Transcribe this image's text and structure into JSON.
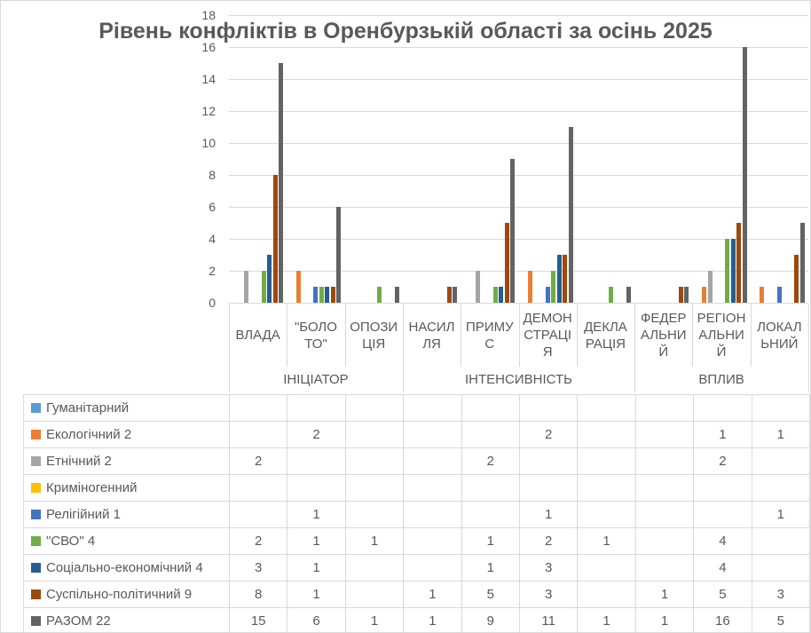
{
  "title": "Рівень конфліктів в Оренбурзькій області за осінь 2025",
  "colors": {
    "text": "#595959",
    "grid": "#d9d9d9",
    "border": "#d9d9d9",
    "background": "#ffffff"
  },
  "chart_data": {
    "type": "bar",
    "title": "Рівень конфліктів в Оренбурзькій області за осінь 2025",
    "xlabel": "",
    "ylabel": "",
    "ylim": [
      0,
      18
    ],
    "yticks": [
      0,
      2,
      4,
      6,
      8,
      10,
      12,
      14,
      16,
      18
    ],
    "grid": true,
    "legend_position": "table-left",
    "categories": [
      "ВЛАДА",
      "\"БОЛОТО\"",
      "ОПОЗИЦІЯ",
      "НАСИЛЛЯ",
      "ПРИМУС",
      "ДЕМОНСТРАЦІЯ",
      "ДЕКЛАРАЦІЯ",
      "ФЕДЕРАЛЬНИЙ",
      "РЕГІОНАЛЬНИЙ",
      "ЛОКАЛЬНИЙ"
    ],
    "category_label_lines": [
      "ВЛАДА",
      "\"БОЛО\nТО\"",
      "ОПОЗИ\nЦІЯ",
      "НАСИЛ\nЛЯ",
      "ПРИМУ\nС",
      "ДЕМОН\nСТРАЦІ\nЯ",
      "ДЕКЛА\nРАЦІЯ",
      "ФЕДЕР\nАЛЬНИ\nЙ",
      "РЕГІОН\nАЛЬНИ\nЙ",
      "ЛОКАЛ\nЬНИЙ"
    ],
    "groups": [
      {
        "label": "ІНІЦІАТОР",
        "span": 3
      },
      {
        "label": "ІНТЕНСИВНІСТЬ",
        "span": 4
      },
      {
        "label": "ВПЛИВ",
        "span": 3
      }
    ],
    "series": [
      {
        "name": "Гуманітарний",
        "color": "#5B9BD5",
        "values": [
          null,
          null,
          null,
          null,
          null,
          null,
          null,
          null,
          null,
          null
        ]
      },
      {
        "name": "Екологічний 2",
        "color": "#ED7D31",
        "values": [
          null,
          2,
          null,
          null,
          null,
          2,
          null,
          null,
          1,
          1
        ]
      },
      {
        "name": "Етнічний 2",
        "color": "#A5A5A5",
        "values": [
          2,
          null,
          null,
          null,
          2,
          null,
          null,
          null,
          2,
          null
        ]
      },
      {
        "name": "Криміногенний",
        "color": "#FFC000",
        "values": [
          null,
          null,
          null,
          null,
          null,
          null,
          null,
          null,
          null,
          null
        ]
      },
      {
        "name": "Релігійний 1",
        "color": "#4472C4",
        "values": [
          null,
          1,
          null,
          null,
          null,
          1,
          null,
          null,
          null,
          1
        ]
      },
      {
        "name": "\"СВО\" 4",
        "color": "#70AD47",
        "values": [
          2,
          1,
          1,
          null,
          1,
          2,
          1,
          null,
          4,
          null
        ]
      },
      {
        "name": "Соціально-економічний 4",
        "color": "#255E91",
        "values": [
          3,
          1,
          null,
          null,
          1,
          3,
          null,
          null,
          4,
          null
        ]
      },
      {
        "name": "Суспільно-політичний 9",
        "color": "#9E480E",
        "values": [
          8,
          1,
          null,
          1,
          5,
          3,
          null,
          1,
          5,
          3
        ]
      },
      {
        "name": "РАЗОМ 22",
        "color": "#636363",
        "values": [
          15,
          6,
          1,
          1,
          9,
          11,
          1,
          1,
          16,
          5
        ]
      }
    ]
  }
}
